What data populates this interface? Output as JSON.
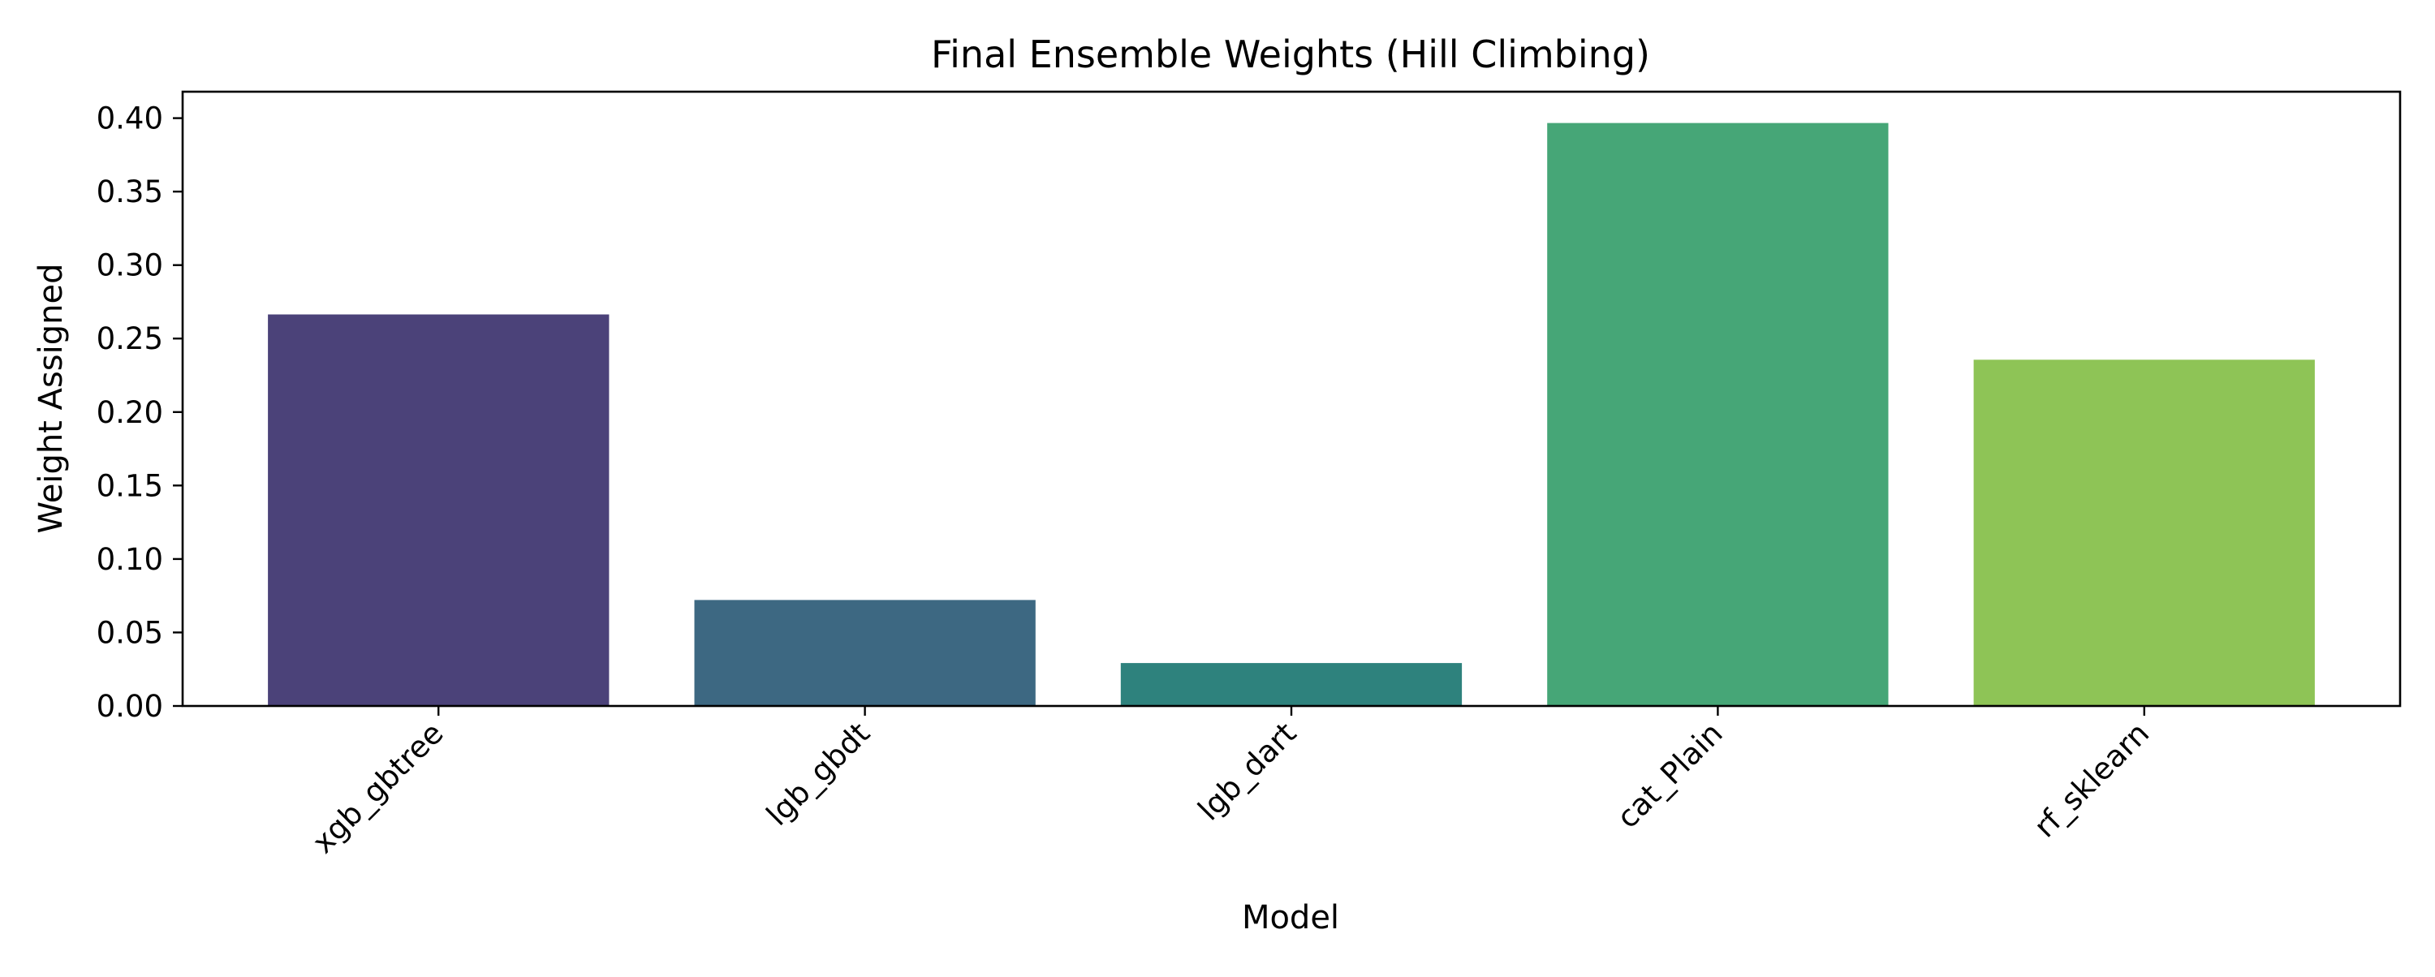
{
  "chart_data": {
    "type": "bar",
    "title": "Final Ensemble Weights (Hill Climbing)",
    "xlabel": "Model",
    "ylabel": "Weight Assigned",
    "categories": [
      "xgb_gbtree",
      "lgb_gbdt",
      "lgb_dart",
      "cat_Plain",
      "rf_sklearn"
    ],
    "values": [
      0.2664,
      0.0721,
      0.0292,
      0.3967,
      0.2356
    ],
    "colors": [
      "#4b4279",
      "#3d6882",
      "#2e827d",
      "#46a677",
      "#8ec456"
    ],
    "ylim": [
      0,
      0.418
    ],
    "yticks": [
      0.0,
      0.05,
      0.1,
      0.15,
      0.2,
      0.25,
      0.3,
      0.35,
      0.4
    ],
    "ytick_labels": [
      "0.00",
      "0.05",
      "0.10",
      "0.15",
      "0.20",
      "0.25",
      "0.30",
      "0.35",
      "0.40"
    ],
    "grid": false,
    "legend": "none",
    "xtick_rotation": "45"
  }
}
